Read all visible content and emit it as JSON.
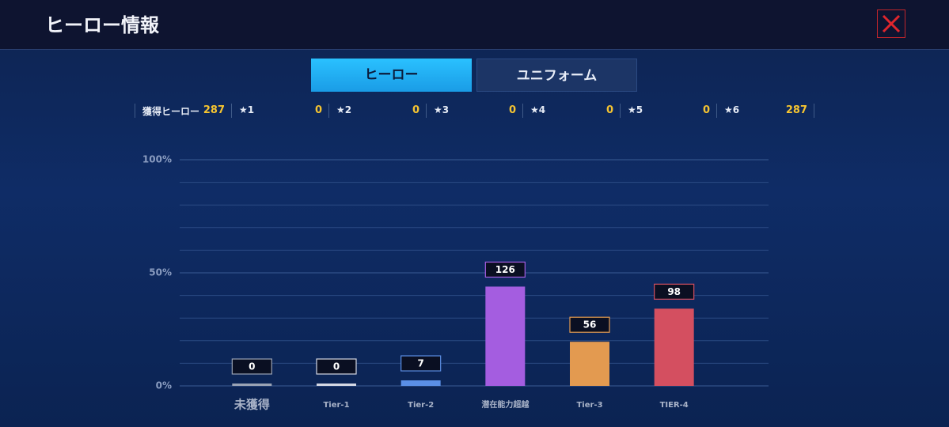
{
  "header": {
    "title": "ヒーロー情報"
  },
  "tabs": [
    "ヒーロー",
    "ユニフォーム"
  ],
  "summary": [
    {
      "label": "獲得ヒーロー",
      "value": 287
    },
    {
      "label": "★1",
      "value": 0
    },
    {
      "label": "★2",
      "value": 0
    },
    {
      "label": "★3",
      "value": 0
    },
    {
      "label": "★4",
      "value": 0
    },
    {
      "label": "★5",
      "value": 0
    },
    {
      "label": "★6",
      "value": 287
    }
  ],
  "chart_data": {
    "type": "bar",
    "categories": [
      "未獲得",
      "Tier-1",
      "Tier-2",
      "潜在能力超越",
      "Tier-3",
      "TIER-4"
    ],
    "values": [
      0,
      0,
      7,
      126,
      56,
      98
    ],
    "colors": [
      "#9aa3b5",
      "#d4d8e4",
      "#5b8fe6",
      "#a45de0",
      "#e39a50",
      "#d44f60"
    ],
    "ylim": [
      0,
      287
    ],
    "yticks": [
      {
        "value": 0,
        "label": "0%"
      },
      {
        "value": 143.5,
        "label": "50%"
      },
      {
        "value": 287,
        "label": "100%"
      }
    ],
    "grid": true
  }
}
